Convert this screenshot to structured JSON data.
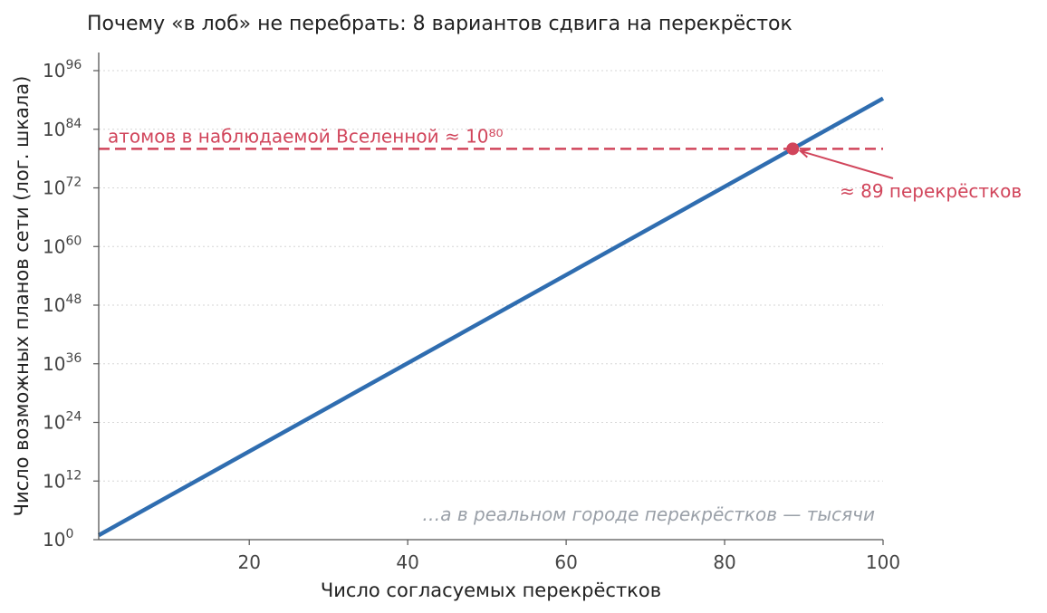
{
  "chart_data": {
    "type": "line",
    "title": "Почему «в лоб» не перебрать: 8 вариантов сдвига на перекрёсток",
    "xlabel": "Число согласуемых перекрёстков",
    "ylabel": "Число возможных планов сети (лог. шкала)",
    "y_scale": "log",
    "xlim": [
      1,
      100
    ],
    "ylim_exponents": [
      0,
      96
    ],
    "x_ticks": [
      20,
      40,
      60,
      80,
      100
    ],
    "y_tick_exponents": [
      0,
      12,
      24,
      36,
      48,
      60,
      72,
      84,
      96
    ],
    "y_tick_base": "10",
    "grid": "horizontal dotted",
    "series": [
      {
        "formula": "8^n",
        "color": "#2f6db0",
        "x": [
          1,
          100
        ],
        "log10_y": [
          0.903,
          90.309
        ]
      }
    ],
    "reference_line": {
      "log10_y": 80,
      "color": "#d1455b",
      "style": "dashed",
      "label": "атомов в наблюдаемой Вселенной  ≈ 10⁸⁰"
    },
    "crossing_point": {
      "x": 88.6,
      "log10_y": 80,
      "label": "≈ 89 перекрёстков"
    },
    "note": "…а в реальном городе перекрёстков — тысячи"
  }
}
